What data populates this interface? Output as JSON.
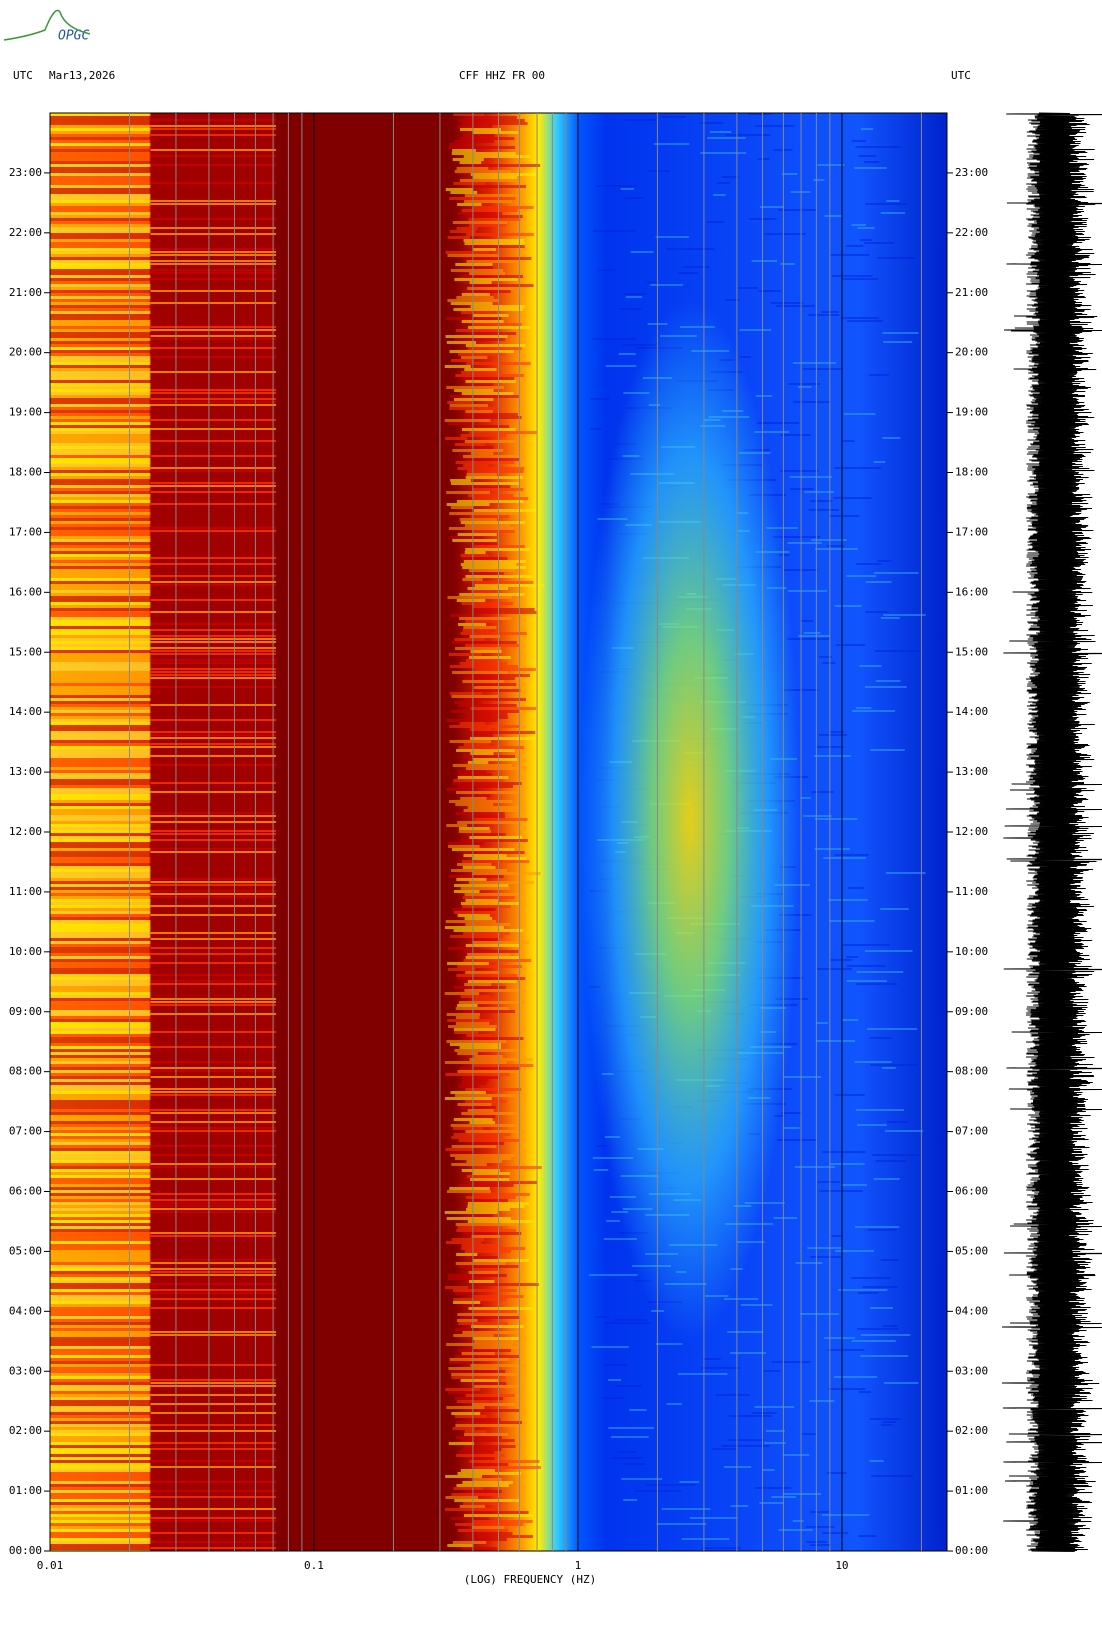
{
  "chart_data": {
    "type": "spectrogram",
    "logo": "OPGC",
    "left_header": "UTC",
    "date": "Mar13,2026",
    "title": "CFF HHZ FR 00",
    "right_header": "UTC",
    "xlabel": "(LOG) FREQUENCY (HZ)",
    "xscale": "log",
    "xlim": [
      0.01,
      25
    ],
    "xticks": [
      0.01,
      0.1,
      1,
      10
    ],
    "xgrid": [
      0.02,
      0.03,
      0.04,
      0.05,
      0.06,
      0.07,
      0.08,
      0.09,
      0.1,
      0.2,
      0.3,
      0.4,
      0.5,
      0.6,
      0.7,
      0.8,
      0.9,
      1,
      2,
      3,
      4,
      5,
      6,
      7,
      8,
      9,
      10,
      20
    ],
    "ylim": [
      0,
      24
    ],
    "yticks": [
      {
        "value": 0,
        "label": "00:00"
      },
      {
        "value": 1,
        "label": "01:00"
      },
      {
        "value": 2,
        "label": "02:00"
      },
      {
        "value": 3,
        "label": "03:00"
      },
      {
        "value": 4,
        "label": "04:00"
      },
      {
        "value": 5,
        "label": "05:00"
      },
      {
        "value": 6,
        "label": "06:00"
      },
      {
        "value": 7,
        "label": "07:00"
      },
      {
        "value": 8,
        "label": "08:00"
      },
      {
        "value": 9,
        "label": "09:00"
      },
      {
        "value": 10,
        "label": "10:00"
      },
      {
        "value": 11,
        "label": "11:00"
      },
      {
        "value": 12,
        "label": "12:00"
      },
      {
        "value": 13,
        "label": "13:00"
      },
      {
        "value": 14,
        "label": "14:00"
      },
      {
        "value": 15,
        "label": "15:00"
      },
      {
        "value": 16,
        "label": "16:00"
      },
      {
        "value": 17,
        "label": "17:00"
      },
      {
        "value": 18,
        "label": "18:00"
      },
      {
        "value": 19,
        "label": "19:00"
      },
      {
        "value": 20,
        "label": "20:00"
      },
      {
        "value": 21,
        "label": "21:00"
      },
      {
        "value": 22,
        "label": "22:00"
      },
      {
        "value": 23,
        "label": "23:00"
      }
    ]
  }
}
